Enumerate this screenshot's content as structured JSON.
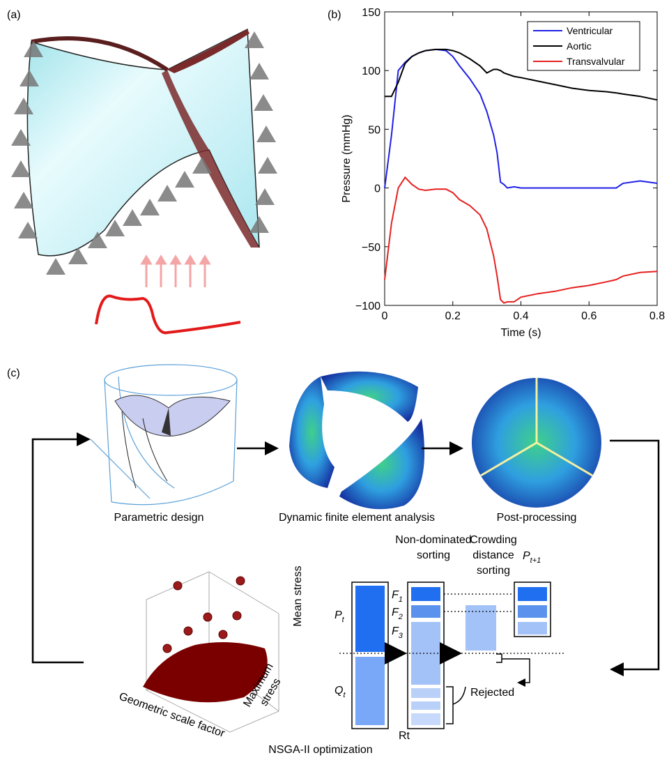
{
  "panel_labels": [
    "(a)",
    "(b)",
    "(c)"
  ],
  "chart_data": {
    "type": "line",
    "xlabel": "Time (s)",
    "ylabel": "Pressure (mmHg)",
    "x": [
      0,
      0.02,
      0.04,
      0.06,
      0.08,
      0.1,
      0.12,
      0.15,
      0.18,
      0.2,
      0.22,
      0.25,
      0.28,
      0.3,
      0.32,
      0.33,
      0.34,
      0.35,
      0.36,
      0.38,
      0.4,
      0.45,
      0.5,
      0.55,
      0.6,
      0.65,
      0.68,
      0.7,
      0.75,
      0.8
    ],
    "series": [
      {
        "name": "Ventricular",
        "color": "#1f1fe6",
        "values": [
          0,
          45,
          100,
          107,
          112,
          115,
          117,
          118,
          117,
          112,
          104,
          93,
          80,
          65,
          45,
          30,
          5,
          3,
          0,
          1,
          0,
          0,
          0,
          0,
          0,
          0,
          0,
          4,
          6,
          4
        ]
      },
      {
        "name": "Aortic",
        "color": "#000000",
        "values": [
          78,
          78,
          90,
          106,
          112,
          115,
          117,
          118,
          118,
          117,
          115,
          110,
          104,
          98,
          101,
          101,
          100,
          98,
          97,
          95,
          94,
          91,
          88,
          85,
          83,
          82,
          81,
          80,
          78,
          75
        ]
      },
      {
        "name": "Transvalvular",
        "color": "#e61f1f",
        "values": [
          -78,
          -30,
          0,
          9,
          3,
          -1,
          -2,
          -1,
          -1,
          -4,
          -10,
          -15,
          -23,
          -35,
          -58,
          -75,
          -95,
          -98,
          -97,
          -97,
          -93,
          -90,
          -88,
          -85,
          -83,
          -80,
          -78,
          -75,
          -72,
          -71
        ]
      }
    ],
    "xlim": [
      0,
      0.8
    ],
    "ylim": [
      -100,
      150
    ],
    "xticks": [
      0,
      0.2,
      0.4,
      0.6,
      0.8
    ],
    "yticks": [
      {
        "value": -100,
        "label": "−100"
      },
      {
        "value": -50,
        "label": "−50"
      },
      0,
      50,
      100,
      150
    ],
    "legend": "upper right"
  },
  "workflow": {
    "steps": [
      "Parametric design",
      "Dynamic finite element analysis",
      "Post-processing"
    ],
    "scatter_axes": {
      "x": "Geometric scale factor",
      "y": [
        "Maximum",
        "stress"
      ],
      "z": "Mean stress"
    },
    "nsga": {
      "sorting_title": [
        "Non-dominated",
        "sorting"
      ],
      "crowding_title": [
        "Crowding",
        "distance",
        "sorting"
      ],
      "next_population": {
        "symbol": "P",
        "subscript": "t+1"
      },
      "parents": {
        "symbol": "P",
        "subscript": "t"
      },
      "offspring": {
        "symbol": "Q",
        "subscript": "t"
      },
      "fronts": [
        {
          "symbol": "F",
          "subscript": "1"
        },
        {
          "symbol": "F",
          "subscript": "2"
        },
        {
          "symbol": "F",
          "subscript": "3"
        }
      ],
      "combined": "Rt",
      "rejected": "Rejected",
      "caption": "NSGA-II optimization"
    }
  }
}
